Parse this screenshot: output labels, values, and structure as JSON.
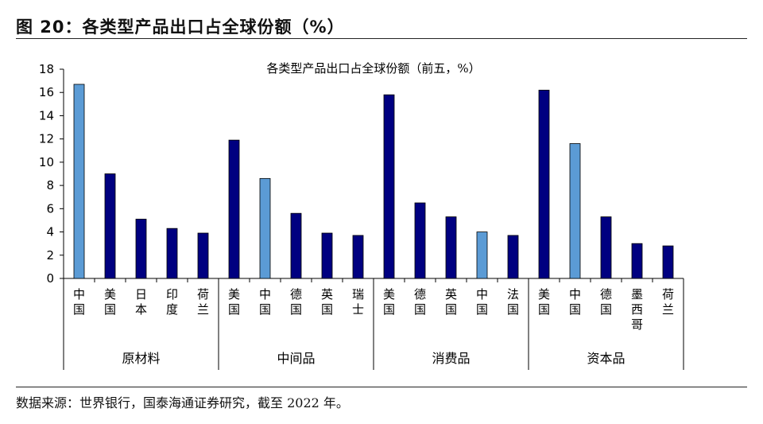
{
  "figure": {
    "title": "图 20：各类型产品出口占全球份额（%）",
    "source": "数据来源：世界银行，国泰海通证券研究，截至 2022 年。"
  },
  "colors": {
    "dark": "#000080",
    "light": "#5b9bd5"
  },
  "chart_data": {
    "type": "bar",
    "title": "各类型产品出口占全球份额（前五，%）",
    "ylim": [
      0,
      18
    ],
    "yticks": [
      0,
      2,
      4,
      6,
      8,
      10,
      12,
      14,
      16,
      18
    ],
    "grid": false,
    "groups": [
      {
        "name": "原材料",
        "bars": [
          {
            "label": "中国",
            "value": 16.7,
            "highlight": true
          },
          {
            "label": "美国",
            "value": 9.0
          },
          {
            "label": "日本",
            "value": 5.1
          },
          {
            "label": "印度",
            "value": 4.3
          },
          {
            "label": "荷兰",
            "value": 3.9
          }
        ]
      },
      {
        "name": "中间品",
        "bars": [
          {
            "label": "美国",
            "value": 11.9
          },
          {
            "label": "中国",
            "value": 8.6,
            "highlight": true
          },
          {
            "label": "德国",
            "value": 5.6
          },
          {
            "label": "英国",
            "value": 3.9
          },
          {
            "label": "瑞士",
            "value": 3.7
          }
        ]
      },
      {
        "name": "消费品",
        "bars": [
          {
            "label": "美国",
            "value": 15.8
          },
          {
            "label": "德国",
            "value": 6.5
          },
          {
            "label": "英国",
            "value": 5.3
          },
          {
            "label": "中国",
            "value": 4.0,
            "highlight": true
          },
          {
            "label": "法国",
            "value": 3.7
          }
        ]
      },
      {
        "name": "资本品",
        "bars": [
          {
            "label": "美国",
            "value": 16.2
          },
          {
            "label": "中国",
            "value": 11.6,
            "highlight": true
          },
          {
            "label": "德国",
            "value": 5.3
          },
          {
            "label": "墨西哥",
            "value": 3.0
          },
          {
            "label": "荷兰",
            "value": 2.8
          }
        ]
      }
    ]
  }
}
